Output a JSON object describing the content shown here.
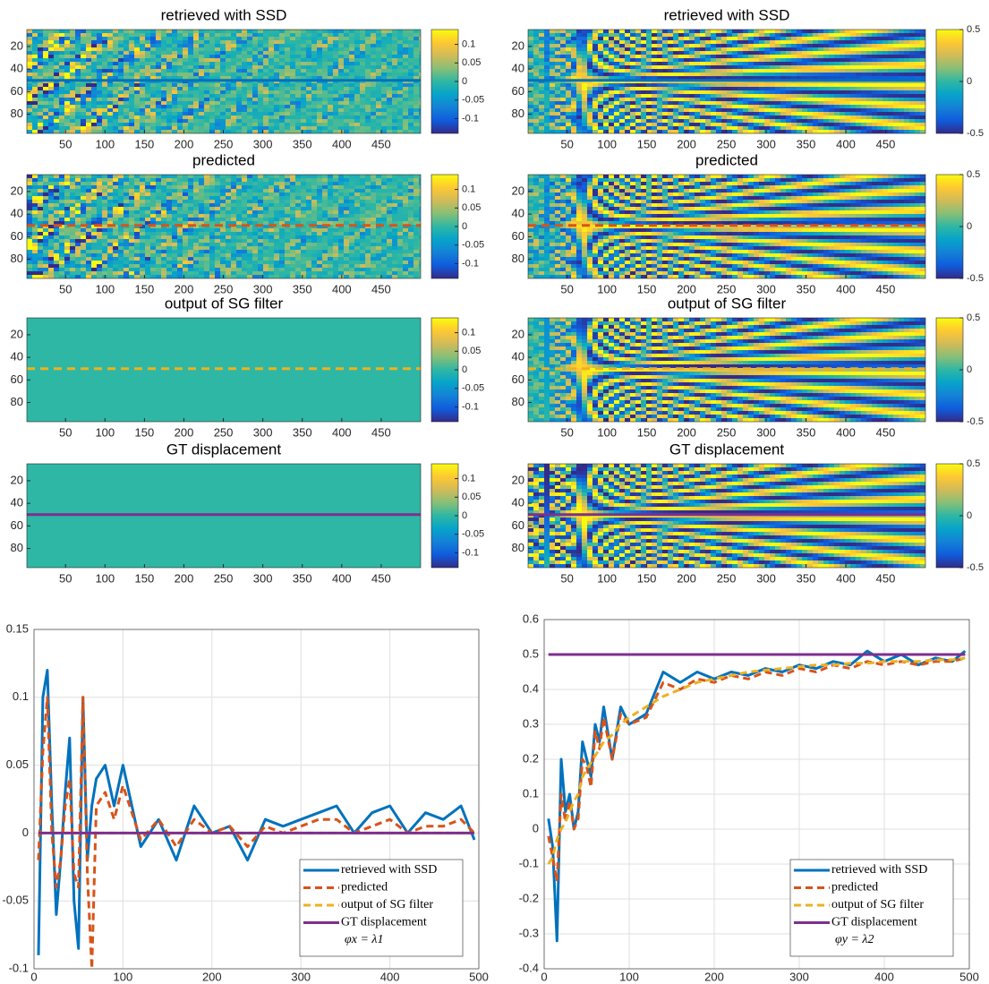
{
  "chart_data": [
    {
      "type": "heatmap",
      "title": "retrieved with SSD",
      "pattern": "noise",
      "xlim": [
        1,
        500
      ],
      "xticks": [
        50,
        100,
        150,
        200,
        250,
        300,
        350,
        400,
        450
      ],
      "ylim": [
        5,
        97
      ],
      "yticks": [
        20,
        40,
        60,
        80
      ],
      "clim": [
        -0.14,
        0.14
      ],
      "cticks": [
        0.1,
        0.05,
        0,
        -0.05,
        -0.1
      ],
      "line": {
        "row": 50,
        "color": "#0072bd",
        "style": "solid"
      }
    },
    {
      "type": "heatmap",
      "title": "retrieved with SSD",
      "pattern": "fan-noisy",
      "xlim": [
        1,
        500
      ],
      "xticks": [
        50,
        100,
        150,
        200,
        250,
        300,
        350,
        400,
        450
      ],
      "ylim": [
        5,
        97
      ],
      "yticks": [
        20,
        40,
        60,
        80
      ],
      "clim": [
        -0.5,
        0.5
      ],
      "cticks": [
        0.5,
        0,
        -0.5
      ],
      "line": {
        "row": 50,
        "color": "#0072bd",
        "style": "solid"
      }
    },
    {
      "type": "heatmap",
      "title": "predicted",
      "pattern": "noise",
      "xlim": [
        1,
        500
      ],
      "xticks": [
        50,
        100,
        150,
        200,
        250,
        300,
        350,
        400,
        450
      ],
      "ylim": [
        5,
        97
      ],
      "yticks": [
        20,
        40,
        60,
        80
      ],
      "clim": [
        -0.14,
        0.14
      ],
      "cticks": [
        0.1,
        0.05,
        0,
        -0.05,
        -0.1
      ],
      "line": {
        "row": 50,
        "color": "#d95319",
        "style": "dashed"
      }
    },
    {
      "type": "heatmap",
      "title": "predicted",
      "pattern": "fan-noisy",
      "xlim": [
        1,
        500
      ],
      "xticks": [
        50,
        100,
        150,
        200,
        250,
        300,
        350,
        400,
        450
      ],
      "ylim": [
        5,
        97
      ],
      "yticks": [
        20,
        40,
        60,
        80
      ],
      "clim": [
        -0.5,
        0.5
      ],
      "cticks": [
        0.5,
        0,
        -0.5
      ],
      "line": {
        "row": 50,
        "color": "#d95319",
        "style": "dashed"
      }
    },
    {
      "type": "heatmap",
      "title": "output of SG filter",
      "pattern": "uniform",
      "xlim": [
        1,
        500
      ],
      "xticks": [
        50,
        100,
        150,
        200,
        250,
        300,
        350,
        400,
        450
      ],
      "ylim": [
        5,
        97
      ],
      "yticks": [
        20,
        40,
        60,
        80
      ],
      "clim": [
        -0.14,
        0.14
      ],
      "cticks": [
        0.1,
        0.05,
        0,
        -0.05,
        -0.1
      ],
      "line": {
        "row": 50,
        "color": "#edb120",
        "style": "dashed"
      }
    },
    {
      "type": "heatmap",
      "title": "output of SG filter",
      "pattern": "fan-smooth",
      "xlim": [
        1,
        500
      ],
      "xticks": [
        50,
        100,
        150,
        200,
        250,
        300,
        350,
        400,
        450
      ],
      "ylim": [
        5,
        97
      ],
      "yticks": [
        20,
        40,
        60,
        80
      ],
      "clim": [
        -0.5,
        0.5
      ],
      "cticks": [
        0.5,
        0,
        -0.5
      ],
      "line": {
        "row": 50,
        "color": "#edb120",
        "style": "dashed"
      }
    },
    {
      "type": "heatmap",
      "title": "GT displacement",
      "pattern": "uniform",
      "xlim": [
        1,
        500
      ],
      "xticks": [
        50,
        100,
        150,
        200,
        250,
        300,
        350,
        400,
        450
      ],
      "ylim": [
        5,
        97
      ],
      "yticks": [
        20,
        40,
        60,
        80
      ],
      "clim": [
        -0.14,
        0.14
      ],
      "cticks": [
        0.1,
        0.05,
        0,
        -0.05,
        -0.1
      ],
      "line": {
        "row": 50,
        "color": "#7e2f8e",
        "style": "solid"
      }
    },
    {
      "type": "heatmap",
      "title": "GT displacement",
      "pattern": "fan",
      "xlim": [
        1,
        500
      ],
      "xticks": [
        50,
        100,
        150,
        200,
        250,
        300,
        350,
        400,
        450
      ],
      "ylim": [
        5,
        97
      ],
      "yticks": [
        20,
        40,
        60,
        80
      ],
      "clim": [
        -0.5,
        0.5
      ],
      "cticks": [
        0.5,
        0,
        -0.5
      ],
      "line": {
        "row": 50,
        "color": "#7e2f8e",
        "style": "solid"
      }
    },
    {
      "type": "line",
      "xlim": [
        0,
        500
      ],
      "xticks": [
        0,
        100,
        200,
        300,
        400,
        500
      ],
      "ylim": [
        -0.1,
        0.15
      ],
      "yticks": [
        -0.1,
        -0.05,
        0,
        0.05,
        0.1,
        0.15
      ],
      "grid": true,
      "legend": "lower right",
      "legend_note": "φx = λ1",
      "x": [
        5,
        10,
        15,
        20,
        25,
        30,
        35,
        40,
        45,
        50,
        55,
        60,
        65,
        70,
        80,
        90,
        100,
        120,
        140,
        160,
        180,
        200,
        220,
        240,
        260,
        280,
        300,
        320,
        340,
        360,
        380,
        400,
        420,
        440,
        460,
        480,
        495
      ],
      "series": [
        {
          "name": "retrieved with SSD",
          "color": "#0072bd",
          "style": "solid",
          "values": [
            -0.09,
            0.1,
            0.12,
            0.02,
            -0.06,
            -0.02,
            0.03,
            0.07,
            -0.05,
            -0.085,
            0.1,
            -0.02,
            0.02,
            0.04,
            0.05,
            0.02,
            0.05,
            -0.01,
            0.01,
            -0.02,
            0.02,
            0,
            0.005,
            -0.02,
            0.01,
            0.005,
            0.01,
            0.015,
            0.02,
            0,
            0.015,
            0.02,
            0,
            0.015,
            0.01,
            0.02,
            -0.005
          ]
        },
        {
          "name": "predicted",
          "color": "#d95319",
          "style": "dashed",
          "values": [
            -0.02,
            0.06,
            0.1,
            0,
            -0.04,
            -0.02,
            0.02,
            0.04,
            -0.03,
            -0.04,
            0.1,
            -0.03,
            -0.1,
            0.02,
            0.03,
            0.01,
            0.035,
            -0.005,
            0.01,
            -0.01,
            0.01,
            0,
            0.005,
            -0.01,
            0.005,
            0,
            0.005,
            0.01,
            0.01,
            0,
            0.005,
            0.01,
            0,
            0.005,
            0.005,
            0.01,
            0
          ]
        },
        {
          "name": "output of SG filter",
          "color": "#edb120",
          "style": "dashed",
          "values": [
            0,
            0,
            0,
            0,
            0,
            0,
            0,
            0,
            0,
            0,
            0,
            0,
            0,
            0,
            0,
            0,
            0,
            0,
            0,
            0,
            0,
            0,
            0,
            0,
            0,
            0,
            0,
            0,
            0,
            0,
            0,
            0,
            0,
            0,
            0,
            0,
            0
          ]
        },
        {
          "name": "GT displacement",
          "color": "#7e2f8e",
          "style": "solid",
          "values": [
            0,
            0,
            0,
            0,
            0,
            0,
            0,
            0,
            0,
            0,
            0,
            0,
            0,
            0,
            0,
            0,
            0,
            0,
            0,
            0,
            0,
            0,
            0,
            0,
            0,
            0,
            0,
            0,
            0,
            0,
            0,
            0,
            0,
            0,
            0,
            0,
            0
          ]
        }
      ]
    },
    {
      "type": "line",
      "xlim": [
        0,
        500
      ],
      "xticks": [
        0,
        100,
        200,
        300,
        400,
        500
      ],
      "ylim": [
        -0.4,
        0.6
      ],
      "yticks": [
        -0.4,
        -0.3,
        -0.2,
        -0.1,
        0,
        0.1,
        0.2,
        0.3,
        0.4,
        0.5,
        0.6
      ],
      "grid": true,
      "legend": "lower right",
      "legend_note": "φy = λ2",
      "x": [
        5,
        10,
        15,
        20,
        25,
        30,
        35,
        40,
        45,
        50,
        55,
        60,
        65,
        70,
        80,
        90,
        100,
        120,
        140,
        160,
        180,
        200,
        220,
        240,
        260,
        280,
        300,
        320,
        340,
        360,
        380,
        400,
        420,
        440,
        460,
        480,
        495
      ],
      "series": [
        {
          "name": "retrieved with SSD",
          "color": "#0072bd",
          "style": "solid",
          "values": [
            0.03,
            -0.05,
            -0.32,
            0.2,
            0.05,
            0.1,
            0,
            0.05,
            0.25,
            0.2,
            0.15,
            0.3,
            0.25,
            0.35,
            0.2,
            0.35,
            0.3,
            0.33,
            0.45,
            0.42,
            0.45,
            0.43,
            0.45,
            0.44,
            0.46,
            0.45,
            0.47,
            0.46,
            0.48,
            0.47,
            0.51,
            0.48,
            0.5,
            0.47,
            0.49,
            0.48,
            0.51
          ]
        },
        {
          "name": "predicted",
          "color": "#d95319",
          "style": "dashed",
          "values": [
            -0.02,
            -0.08,
            -0.15,
            0.1,
            0.02,
            0.08,
            0,
            0.03,
            0.2,
            0.18,
            0.12,
            0.28,
            0.23,
            0.32,
            0.2,
            0.33,
            0.3,
            0.32,
            0.42,
            0.4,
            0.43,
            0.42,
            0.44,
            0.43,
            0.45,
            0.44,
            0.46,
            0.45,
            0.47,
            0.46,
            0.48,
            0.47,
            0.48,
            0.47,
            0.48,
            0.48,
            0.49
          ]
        },
        {
          "name": "output of SG filter",
          "color": "#edb120",
          "style": "dashed",
          "values": [
            -0.1,
            -0.08,
            -0.03,
            0,
            0.02,
            0.05,
            0.08,
            0.1,
            0.15,
            0.17,
            0.19,
            0.21,
            0.23,
            0.25,
            0.27,
            0.3,
            0.32,
            0.35,
            0.38,
            0.4,
            0.42,
            0.43,
            0.44,
            0.45,
            0.455,
            0.46,
            0.465,
            0.47,
            0.47,
            0.475,
            0.475,
            0.48,
            0.48,
            0.48,
            0.485,
            0.485,
            0.49
          ]
        },
        {
          "name": "GT displacement",
          "color": "#7e2f8e",
          "style": "solid",
          "values": [
            0.5,
            0.5,
            0.5,
            0.5,
            0.5,
            0.5,
            0.5,
            0.5,
            0.5,
            0.5,
            0.5,
            0.5,
            0.5,
            0.5,
            0.5,
            0.5,
            0.5,
            0.5,
            0.5,
            0.5,
            0.5,
            0.5,
            0.5,
            0.5,
            0.5,
            0.5,
            0.5,
            0.5,
            0.5,
            0.5,
            0.5,
            0.5,
            0.5,
            0.5,
            0.5,
            0.5,
            0.5
          ]
        }
      ]
    }
  ]
}
